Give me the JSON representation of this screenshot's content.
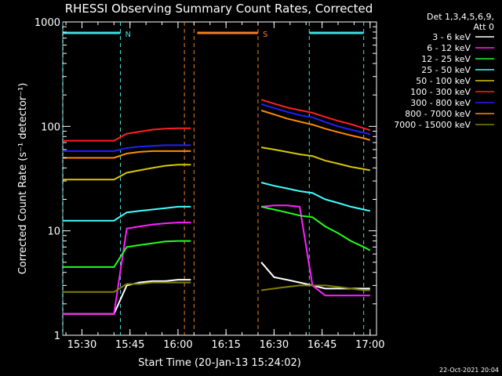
{
  "chart_data": {
    "type": "line",
    "title": "RHESSI Observing Summary Count Rates, Corrected",
    "xlabel": "Start Time (20-Jan-13 15:24:02)",
    "ylabel": "Corrected Count Rate (s⁻¹ detector⁻¹)",
    "yscale": "log",
    "ylim": [
      1,
      1000
    ],
    "xlim": [
      "15:24",
      "17:02"
    ],
    "x_ticks": [
      "15:30",
      "15:45",
      "16:00",
      "16:15",
      "16:30",
      "16:45",
      "17:00"
    ],
    "y_ticks": [
      "1",
      "10",
      "100",
      "1000"
    ],
    "grid": false,
    "legend_placement": "right",
    "legend_header": [
      "Det 1,3,4,5,6,9,",
      "Att 0"
    ],
    "footer": "22-Oct-2021 20:04",
    "markers": [
      {
        "label": "N",
        "color": "#40e0e0",
        "segments": [
          [
            "15:24",
            "15:42"
          ],
          [
            "16:41",
            "16:58"
          ]
        ],
        "lines": [
          "15:24",
          "15:42",
          "16:41",
          "16:58"
        ]
      },
      {
        "label": "S",
        "color": "#f08020",
        "segments": [
          [
            "16:06",
            "16:25"
          ]
        ],
        "lines": [
          "16:02",
          "16:05",
          "16:25"
        ]
      }
    ],
    "x_data": [
      "15:24",
      "15:28",
      "15:32",
      "15:36",
      "15:40",
      "15:44",
      "15:48",
      "15:52",
      "15:56",
      "16:00",
      "16:04",
      "16:26",
      "16:30",
      "16:34",
      "16:38",
      "16:42",
      "16:46",
      "16:50",
      "16:54",
      "16:58",
      "17:00"
    ],
    "series": [
      {
        "name": "3 - 6 keV",
        "color": "#ffffff",
        "values": [
          1.6,
          1.6,
          1.6,
          1.6,
          1.6,
          3.0,
          3.2,
          3.3,
          3.3,
          3.4,
          3.4,
          5.0,
          3.6,
          3.4,
          3.2,
          3.0,
          2.8,
          2.8,
          2.8,
          2.8,
          2.8
        ]
      },
      {
        "name": "6 - 12 keV",
        "color": "#ff20ff",
        "values": [
          1.6,
          1.6,
          1.6,
          1.6,
          1.6,
          10.5,
          11.0,
          11.5,
          11.8,
          12.0,
          12.0,
          17.0,
          17.5,
          17.5,
          17.0,
          3.0,
          2.4,
          2.4,
          2.4,
          2.4,
          2.4
        ]
      },
      {
        "name": "12 - 25 keV",
        "color": "#20ff20",
        "values": [
          4.5,
          4.5,
          4.5,
          4.5,
          4.5,
          7.0,
          7.3,
          7.6,
          7.9,
          8.0,
          8.0,
          17.0,
          16.0,
          15.0,
          14.0,
          13.5,
          11.0,
          9.5,
          8.0,
          7.0,
          6.5
        ]
      },
      {
        "name": "25 - 50 keV",
        "color": "#40ffff",
        "values": [
          12.5,
          12.5,
          12.5,
          12.5,
          12.5,
          15.0,
          15.5,
          16.0,
          16.5,
          17.0,
          17.0,
          29.0,
          27.0,
          25.5,
          24.0,
          23.0,
          20.0,
          18.5,
          17.0,
          16.0,
          15.5
        ]
      },
      {
        "name": "50 - 100 keV",
        "color": "#d8c800",
        "values": [
          31,
          31,
          31,
          31,
          31,
          36,
          38,
          40,
          42,
          43,
          43,
          63,
          60,
          57,
          54,
          52,
          47,
          44,
          41,
          39,
          38
        ]
      },
      {
        "name": "100 - 300 keV",
        "color": "#ff2020",
        "values": [
          73,
          73,
          73,
          73,
          73,
          85,
          89,
          93,
          95,
          96,
          96,
          180,
          165,
          152,
          143,
          135,
          123,
          113,
          105,
          96,
          92
        ]
      },
      {
        "name": "300 - 800 keV",
        "color": "#2020ff",
        "values": [
          58,
          58,
          58,
          58,
          58,
          62,
          64,
          65,
          66,
          66,
          66,
          163,
          150,
          138,
          128,
          122,
          110,
          100,
          93,
          87,
          84
        ]
      },
      {
        "name": "800 - 7000 keV",
        "color": "#ff8c00",
        "values": [
          50,
          50,
          50,
          50,
          50,
          55,
          57,
          58,
          58,
          58,
          58,
          142,
          130,
          119,
          111,
          104,
          95,
          88,
          82,
          77,
          74
        ]
      },
      {
        "name": "7000 - 15000 keV",
        "color": "#808000",
        "values": [
          2.6,
          2.6,
          2.6,
          2.6,
          2.6,
          3.1,
          3.1,
          3.2,
          3.2,
          3.2,
          3.2,
          2.7,
          2.8,
          2.9,
          3.0,
          3.0,
          3.0,
          2.9,
          2.8,
          2.7,
          2.7
        ]
      }
    ]
  }
}
